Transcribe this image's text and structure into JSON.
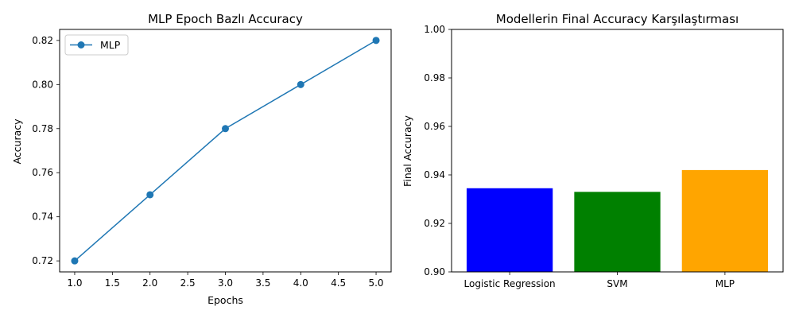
{
  "chart_data": [
    {
      "type": "line",
      "title": "MLP Epoch Bazlı Accuracy",
      "xlabel": "Epochs",
      "ylabel": "Accuracy",
      "xlim": [
        0.8,
        5.2
      ],
      "ylim": [
        0.715,
        0.825
      ],
      "xticks": [
        "1.0",
        "1.5",
        "2.0",
        "2.5",
        "3.0",
        "3.5",
        "4.0",
        "4.5",
        "5.0"
      ],
      "yticks": [
        "0.72",
        "0.74",
        "0.76",
        "0.78",
        "0.80",
        "0.82"
      ],
      "grid": false,
      "legend_position": "top-left",
      "series": [
        {
          "name": "MLP",
          "color": "#1f77b4",
          "marker": "circle",
          "x": [
            1,
            2,
            3,
            4,
            5
          ],
          "y": [
            0.72,
            0.75,
            0.78,
            0.8,
            0.82
          ]
        }
      ]
    },
    {
      "type": "bar",
      "title": "Modellerin Final Accuracy Karşılaştırması",
      "xlabel": "",
      "ylabel": "Final Accuracy",
      "ylim": [
        0.9,
        1.0
      ],
      "yticks": [
        "0.90",
        "0.92",
        "0.94",
        "0.96",
        "0.98",
        "1.00"
      ],
      "grid": false,
      "categories": [
        "Logistic Regression",
        "SVM",
        "MLP"
      ],
      "values": [
        0.9345,
        0.933,
        0.942
      ],
      "colors": [
        "#0000ff",
        "#008000",
        "#ffa500"
      ]
    }
  ]
}
